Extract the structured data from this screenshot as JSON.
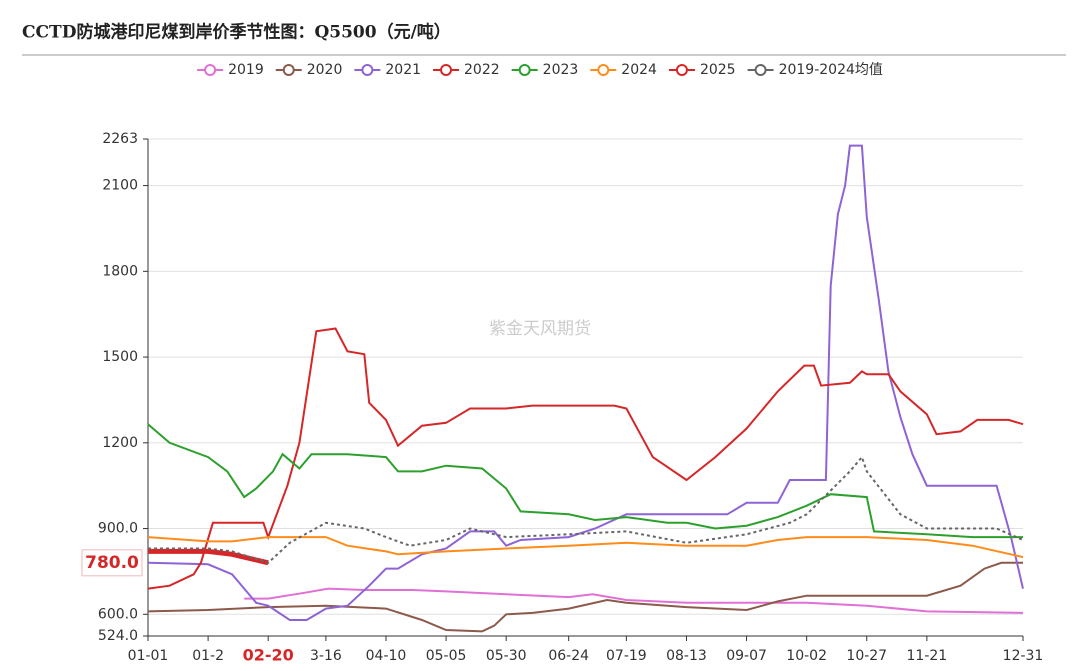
{
  "chart_data": {
    "type": "line",
    "title": "CCTD防城港印尼煤到岸价季节性图：Q5500（元/吨）",
    "watermark": "紫金天风期货",
    "xlim": [
      0,
      364
    ],
    "xticks": [
      {
        "value": 0,
        "label": "01-01"
      },
      {
        "value": 25,
        "label": "01-2"
      },
      {
        "value": 50,
        "label": "02-20"
      },
      {
        "value": 74,
        "label": "3-16"
      },
      {
        "value": 99,
        "label": "04-10"
      },
      {
        "value": 124,
        "label": "05-05"
      },
      {
        "value": 149,
        "label": "05-30"
      },
      {
        "value": 175,
        "label": "06-24"
      },
      {
        "value": 199,
        "label": "07-19"
      },
      {
        "value": 224,
        "label": "08-13"
      },
      {
        "value": 249,
        "label": "09-07"
      },
      {
        "value": 274,
        "label": "10-02"
      },
      {
        "value": 299,
        "label": "10-27"
      },
      {
        "value": 324,
        "label": "11-21"
      },
      {
        "value": 364,
        "label": "12-31"
      }
    ],
    "ylim": [
      524,
      2263
    ],
    "yticks": [
      {
        "value": 524,
        "label": "524.0"
      },
      {
        "value": 600,
        "label": "600.0"
      },
      {
        "value": 900,
        "label": "900.0"
      },
      1200,
      1500,
      1800,
      2100,
      2263
    ],
    "grid": true,
    "legend": "top",
    "series": [
      {
        "name": "2019",
        "color": "#e070d6",
        "x": [
          40,
          50,
          65,
          75,
          90,
          110,
          124,
          149,
          175,
          185,
          199,
          224,
          249,
          274,
          299,
          324,
          364
        ],
        "values": [
          655,
          655,
          675,
          690,
          685,
          685,
          680,
          670,
          660,
          670,
          650,
          640,
          640,
          640,
          630,
          610,
          605
        ]
      },
      {
        "name": "2020",
        "color": "#8c5a4a",
        "x": [
          0,
          25,
          50,
          74,
          99,
          114,
          124,
          139,
          144,
          149,
          160,
          175,
          191,
          199,
          224,
          249,
          262,
          274,
          299,
          324,
          338,
          348,
          355,
          364
        ],
        "values": [
          610,
          615,
          625,
          630,
          620,
          580,
          545,
          540,
          560,
          600,
          605,
          620,
          650,
          640,
          625,
          615,
          645,
          665,
          665,
          665,
          700,
          760,
          780,
          780
        ]
      },
      {
        "name": "2021",
        "color": "#8e63d6",
        "x": [
          0,
          25,
          35,
          45,
          50,
          59,
          66,
          74,
          83,
          92,
          99,
          104,
          114,
          124,
          134,
          144,
          149,
          155,
          175,
          186,
          199,
          224,
          241,
          249,
          262,
          267,
          282,
          284,
          287,
          290,
          292,
          297,
          299,
          304,
          308,
          313,
          318,
          324,
          353,
          359,
          364
        ],
        "values": [
          780,
          775,
          740,
          640,
          630,
          580,
          580,
          620,
          630,
          700,
          760,
          760,
          810,
          830,
          890,
          890,
          840,
          860,
          870,
          900,
          950,
          950,
          950,
          990,
          990,
          1070,
          1070,
          1750,
          2000,
          2100,
          2240,
          2240,
          1990,
          1700,
          1450,
          1290,
          1160,
          1050,
          1050,
          870,
          690
        ]
      },
      {
        "name": "2022",
        "color": "#d62728",
        "x": [
          0,
          9,
          19,
          22,
          27,
          48,
          50,
          58,
          63,
          70,
          78,
          83,
          90,
          92,
          99,
          104,
          114,
          124,
          134,
          149,
          160,
          175,
          194,
          199,
          210,
          224,
          236,
          249,
          262,
          273,
          277,
          280,
          292,
          297,
          299,
          308,
          313,
          324,
          328,
          338,
          345,
          358,
          364
        ],
        "values": [
          690,
          700,
          740,
          780,
          920,
          920,
          870,
          1050,
          1200,
          1590,
          1600,
          1520,
          1510,
          1340,
          1280,
          1190,
          1260,
          1270,
          1320,
          1320,
          1330,
          1330,
          1330,
          1320,
          1150,
          1070,
          1150,
          1250,
          1380,
          1470,
          1470,
          1400,
          1410,
          1450,
          1440,
          1440,
          1380,
          1300,
          1230,
          1240,
          1280,
          1280,
          1265
        ]
      },
      {
        "name": "2023",
        "color": "#2ca02c",
        "x": [
          0,
          9,
          25,
          33,
          40,
          45,
          52,
          56,
          63,
          68,
          83,
          99,
          104,
          114,
          124,
          139,
          149,
          155,
          175,
          186,
          199,
          216,
          224,
          236,
          249,
          262,
          274,
          284,
          299,
          302,
          324,
          343,
          364
        ],
        "values": [
          1265,
          1200,
          1150,
          1100,
          1010,
          1040,
          1100,
          1160,
          1110,
          1160,
          1160,
          1150,
          1100,
          1100,
          1120,
          1110,
          1040,
          960,
          950,
          930,
          940,
          920,
          920,
          900,
          910,
          940,
          980,
          1020,
          1010,
          890,
          880,
          870,
          870
        ]
      },
      {
        "name": "2024",
        "color": "#ff8c1a",
        "x": [
          0,
          25,
          35,
          50,
          74,
          83,
          99,
          104,
          124,
          149,
          175,
          199,
          224,
          249,
          262,
          274,
          299,
          324,
          343,
          364
        ],
        "values": [
          870,
          855,
          855,
          870,
          870,
          840,
          820,
          810,
          820,
          830,
          840,
          850,
          840,
          840,
          860,
          870,
          870,
          860,
          840,
          800
        ]
      },
      {
        "name": "2025",
        "color": "#d62728",
        "width": 5,
        "x": [
          0,
          25,
          35,
          45,
          50
        ],
        "values": [
          820,
          820,
          810,
          790,
          780
        ],
        "value_labels": [
          null,
          null,
          null,
          null,
          "780.0"
        ]
      },
      {
        "name": "2019-2024均值",
        "color": "#666666",
        "dashed": true,
        "x": [
          0,
          25,
          35,
          50,
          59,
          74,
          90,
          99,
          109,
          124,
          134,
          149,
          175,
          199,
          224,
          249,
          267,
          274,
          292,
          297,
          299,
          313,
          324,
          353,
          364
        ],
        "values": [
          830,
          830,
          820,
          780,
          850,
          920,
          900,
          870,
          840,
          860,
          900,
          870,
          880,
          890,
          850,
          880,
          920,
          950,
          1100,
          1150,
          1100,
          950,
          900,
          900,
          860
        ]
      }
    ]
  }
}
